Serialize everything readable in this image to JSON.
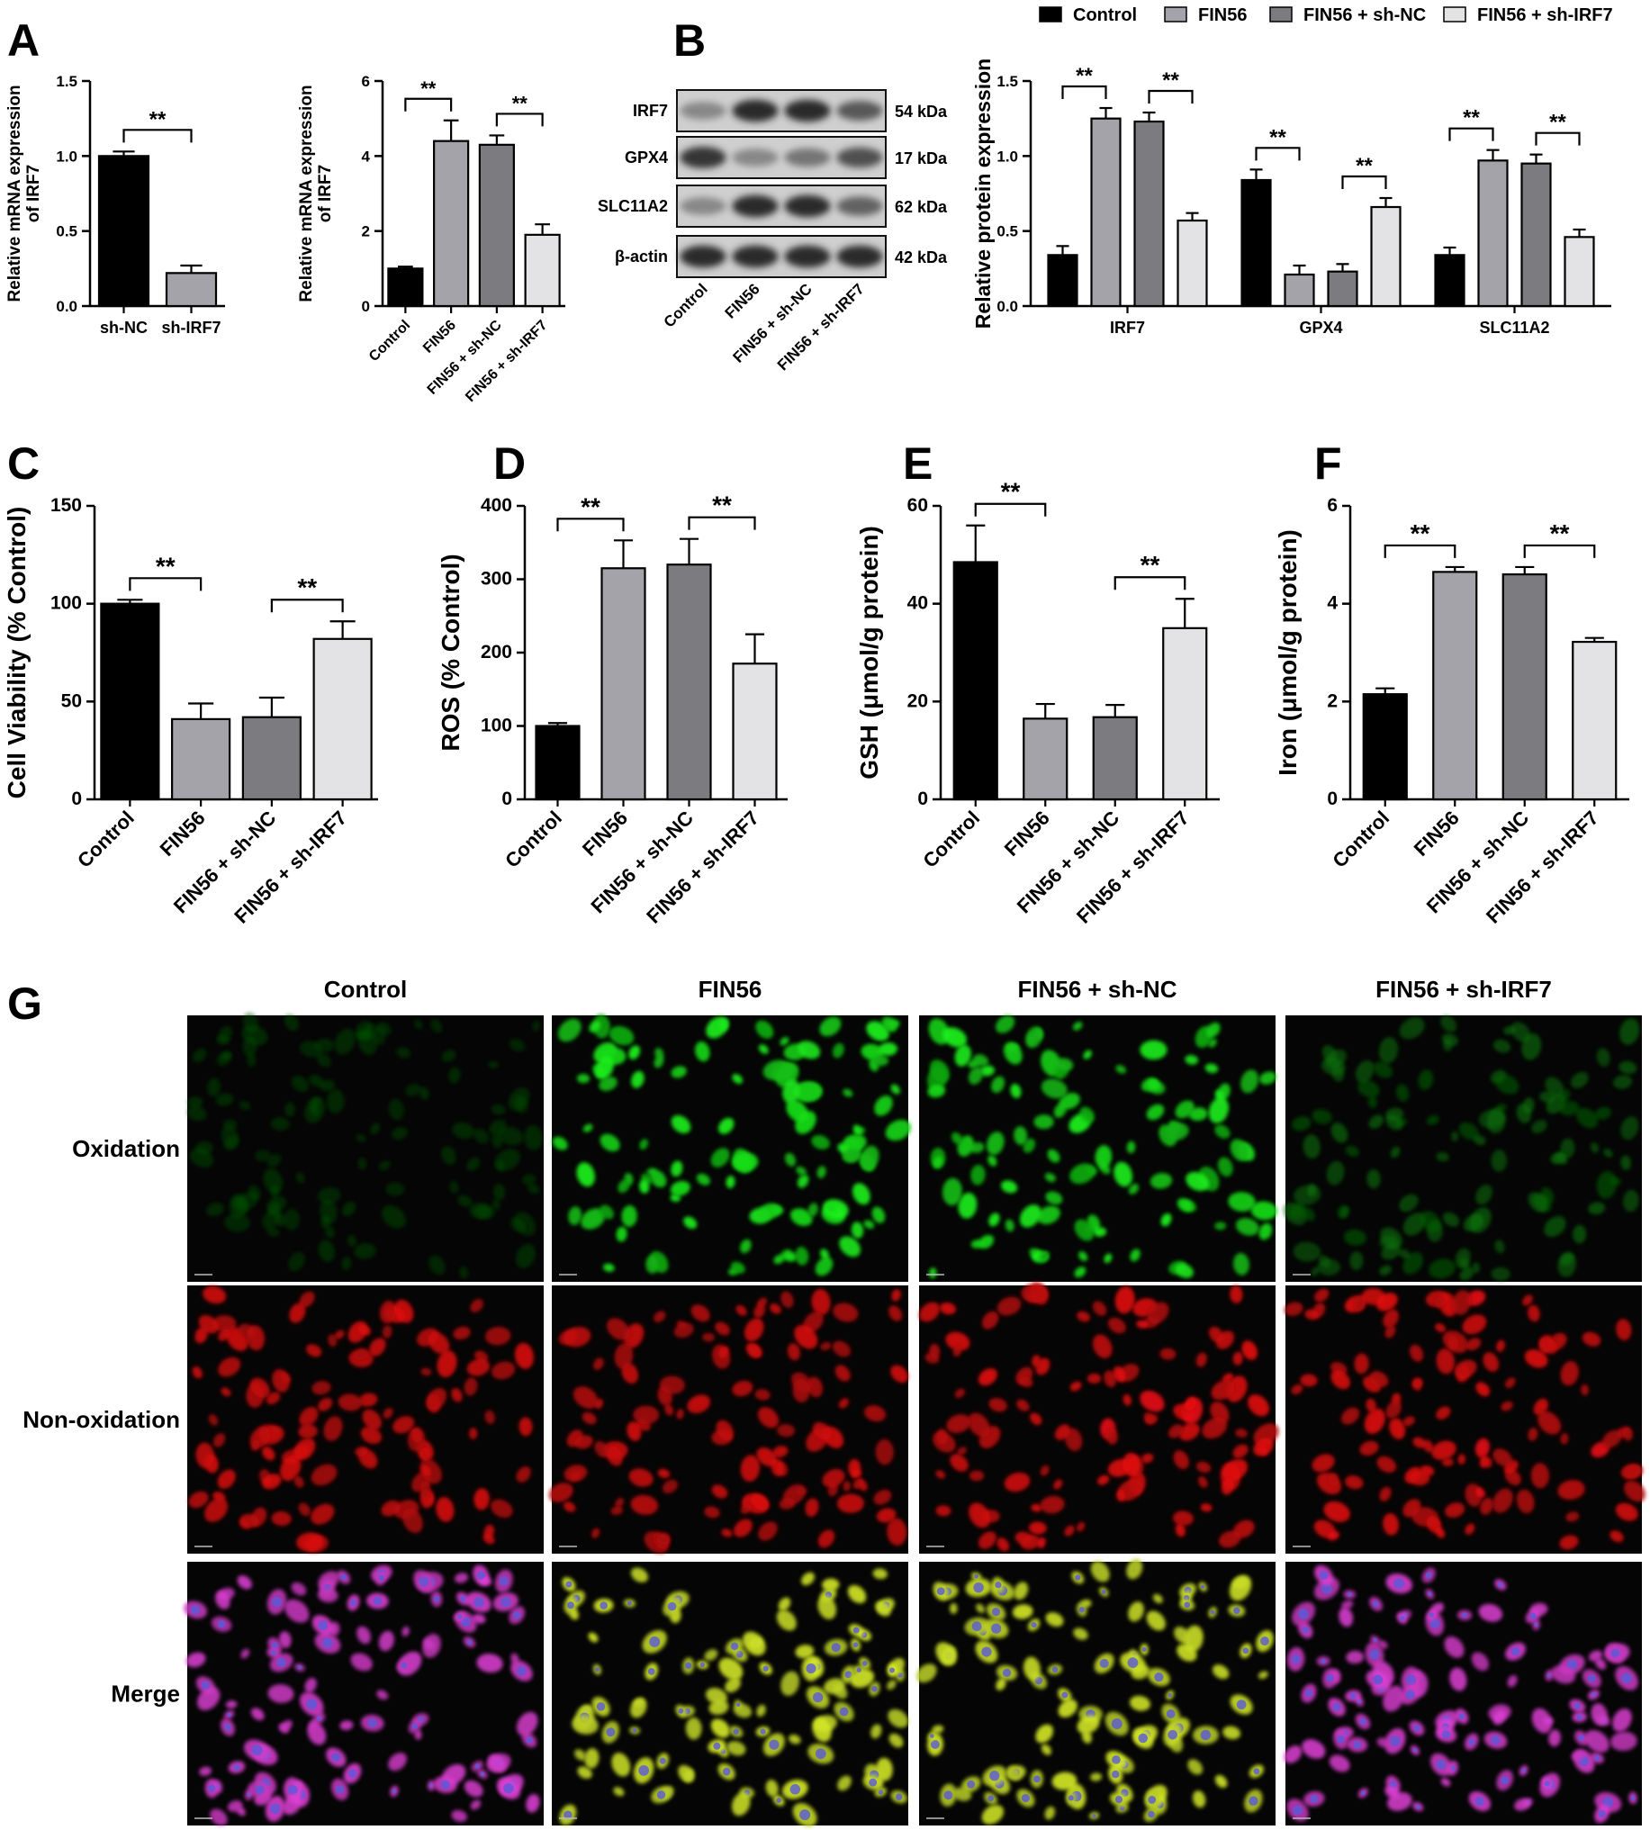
{
  "panel_letters": {
    "A": "A",
    "B": "B",
    "C": "C",
    "D": "D",
    "E": "E",
    "F": "F",
    "G": "G"
  },
  "sig_label": "**",
  "colors": {
    "Control": "#000000",
    "FIN56": "#a3a3a9",
    "FIN56 + sh-NC": "#7b7b80",
    "FIN56 + sh-IRF7": "#e3e3e5"
  },
  "legend": {
    "items": [
      "Control",
      "FIN56",
      "FIN56 + sh-NC",
      "FIN56 + sh-IRF7"
    ]
  },
  "blot": {
    "rows": [
      {
        "protein": "IRF7",
        "size": "54 kDa",
        "intensity": [
          0.35,
          0.85,
          0.85,
          0.6
        ]
      },
      {
        "protein": "GPX4",
        "size": "17 kDa",
        "intensity": [
          0.8,
          0.35,
          0.45,
          0.65
        ]
      },
      {
        "protein": "SLC11A2",
        "size": "62 kDa",
        "intensity": [
          0.35,
          0.85,
          0.85,
          0.55
        ]
      },
      {
        "protein": "β-actin",
        "size": "42 kDa",
        "intensity": [
          0.85,
          0.85,
          0.85,
          0.85
        ]
      }
    ],
    "lanes": [
      "Control",
      "FIN56",
      "FIN56 + sh-NC",
      "FIN56 + sh-IRF7"
    ]
  },
  "chart_data": [
    {
      "id": "A1",
      "type": "bar",
      "categories": [
        "sh-NC",
        "sh-IRF7"
      ],
      "values": [
        1.0,
        0.22
      ],
      "errors": [
        0.03,
        0.05
      ],
      "ylabel": "Relative mRNA expression of IRF7",
      "ylim": [
        0,
        1.5
      ],
      "yticks": [
        "0.0",
        "0.5",
        "1.0",
        "1.5"
      ],
      "colors": [
        "#000000",
        "#a3a3a9"
      ],
      "sig": [
        [
          0,
          1
        ]
      ]
    },
    {
      "id": "A2",
      "type": "bar",
      "categories": [
        "Control",
        "FIN56",
        "FIN56 + sh-NC",
        "FIN56 + sh-IRF7"
      ],
      "values": [
        1.0,
        4.4,
        4.3,
        1.9
      ],
      "errors": [
        0.05,
        0.55,
        0.25,
        0.28
      ],
      "ylabel": "Relative mRNA expression of IRF7",
      "ylim": [
        0,
        6
      ],
      "yticks": [
        "0",
        "2",
        "4",
        "6"
      ],
      "colors": [
        "#000000",
        "#a3a3a9",
        "#7b7b80",
        "#e3e3e5"
      ],
      "sig": [
        [
          0,
          1
        ],
        [
          2,
          3
        ]
      ]
    },
    {
      "id": "B",
      "type": "bar",
      "categories": [
        "IRF7",
        "GPX4",
        "SLC11A2"
      ],
      "series": [
        {
          "name": "Control",
          "values": [
            0.34,
            0.84,
            0.34
          ],
          "errors": [
            0.06,
            0.07,
            0.05
          ]
        },
        {
          "name": "FIN56",
          "values": [
            1.25,
            0.21,
            0.97
          ],
          "errors": [
            0.07,
            0.06,
            0.07
          ]
        },
        {
          "name": "FIN56 + sh-NC",
          "values": [
            1.23,
            0.23,
            0.95
          ],
          "errors": [
            0.06,
            0.05,
            0.06
          ]
        },
        {
          "name": "FIN56 + sh-IRF7",
          "values": [
            0.57,
            0.66,
            0.46
          ],
          "errors": [
            0.05,
            0.06,
            0.05
          ]
        }
      ],
      "ylabel": "Relative protein expression",
      "ylim": [
        0,
        1.5
      ],
      "yticks": [
        "0.0",
        "0.5",
        "1.0",
        "1.5"
      ],
      "legend": "top"
    },
    {
      "id": "C",
      "type": "bar",
      "categories": [
        "Control",
        "FIN56",
        "FIN56 + sh-NC",
        "FIN56 + sh-IRF7"
      ],
      "values": [
        100,
        41,
        42,
        82
      ],
      "errors": [
        2,
        8,
        10,
        9
      ],
      "ylabel": "Cell Viability (% Control)",
      "ylim": [
        0,
        150
      ],
      "yticks": [
        "0",
        "50",
        "100",
        "150"
      ],
      "colors": [
        "#000000",
        "#a3a3a9",
        "#7b7b80",
        "#e3e3e5"
      ],
      "sig": [
        [
          0,
          1
        ],
        [
          2,
          3
        ]
      ]
    },
    {
      "id": "D",
      "type": "bar",
      "categories": [
        "Control",
        "FIN56",
        "FIN56 + sh-NC",
        "FIN56 + sh-IRF7"
      ],
      "values": [
        100,
        315,
        320,
        185
      ],
      "errors": [
        4,
        38,
        35,
        40
      ],
      "ylabel": "ROS (% Control)",
      "ylim": [
        0,
        400
      ],
      "yticks": [
        "0",
        "100",
        "200",
        "300",
        "400"
      ],
      "colors": [
        "#000000",
        "#a3a3a9",
        "#7b7b80",
        "#e3e3e5"
      ],
      "sig": [
        [
          0,
          1
        ],
        [
          2,
          3
        ]
      ]
    },
    {
      "id": "E",
      "type": "bar",
      "categories": [
        "Control",
        "FIN56",
        "FIN56 + sh-NC",
        "FIN56 + sh-IRF7"
      ],
      "values": [
        48.5,
        16.5,
        16.8,
        35
      ],
      "errors": [
        7.5,
        3,
        2.5,
        6
      ],
      "ylabel": "GSH (μmol/g protein)",
      "ylim": [
        0,
        60
      ],
      "yticks": [
        "0",
        "20",
        "40",
        "60"
      ],
      "colors": [
        "#000000",
        "#a3a3a9",
        "#7b7b80",
        "#e3e3e5"
      ],
      "sig": [
        [
          0,
          1
        ],
        [
          2,
          3
        ]
      ]
    },
    {
      "id": "F",
      "type": "bar",
      "categories": [
        "Control",
        "FIN56",
        "FIN56 + sh-NC",
        "FIN56 + sh-IRF7"
      ],
      "values": [
        2.15,
        4.65,
        4.6,
        3.22
      ],
      "errors": [
        0.12,
        0.1,
        0.15,
        0.08
      ],
      "ylabel": "Iron (μmol/g protein)",
      "ylim": [
        0,
        6
      ],
      "yticks": [
        "0",
        "2",
        "4",
        "6"
      ],
      "colors": [
        "#000000",
        "#a3a3a9",
        "#7b7b80",
        "#e3e3e5"
      ],
      "sig": [
        [
          0,
          1
        ],
        [
          2,
          3
        ]
      ]
    }
  ],
  "microscopy": {
    "columns": [
      "Control",
      "FIN56",
      "FIN56 + sh-NC",
      "FIN56 + sh-IRF7"
    ],
    "rows": [
      {
        "label": "Oxidation",
        "brightness": [
          0.15,
          0.95,
          0.95,
          0.35
        ],
        "hue": "green"
      },
      {
        "label": "Non-oxidation",
        "brightness": [
          0.85,
          0.85,
          0.9,
          0.9
        ],
        "hue": "red"
      },
      {
        "label": "Merge",
        "brightness": [
          0.85,
          0.9,
          0.9,
          0.85
        ],
        "hue": [
          "magenta",
          "yellowgreen",
          "yellowgreen",
          "magenta"
        ]
      }
    ]
  }
}
